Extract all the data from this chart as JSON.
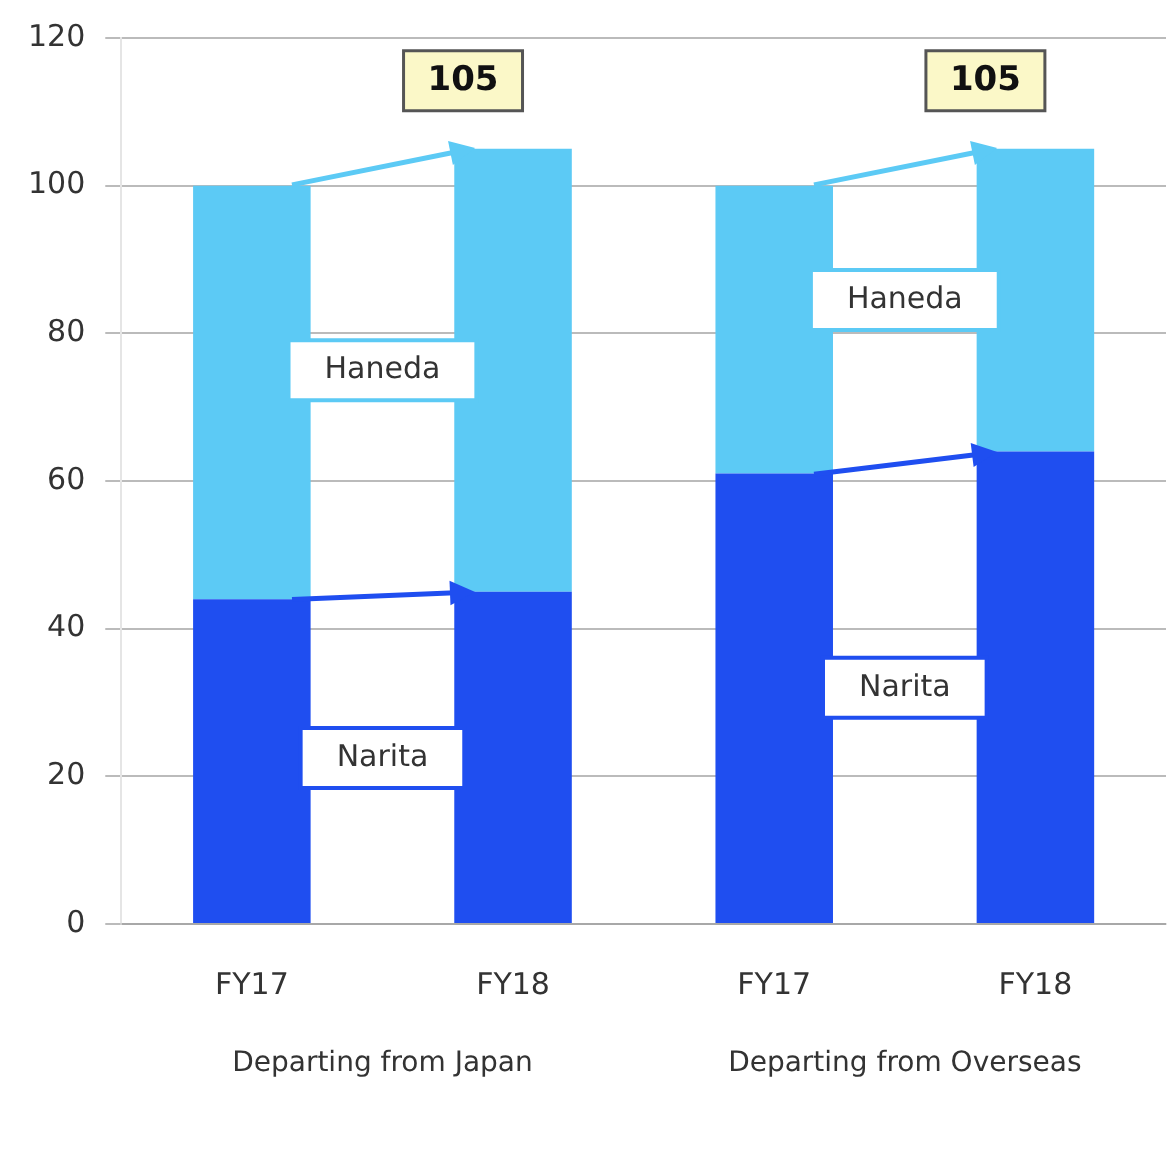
{
  "chart_data": {
    "type": "bar",
    "stacked": true,
    "categories": [
      "FY17",
      "FY18",
      "FY17",
      "FY18"
    ],
    "series": [
      {
        "name": "Narita",
        "color": "#1f4ef0",
        "values": [
          44,
          45,
          61,
          64
        ]
      },
      {
        "name": "Haneda",
        "color": "#5ccaf5",
        "values": [
          56,
          60,
          39,
          41
        ]
      }
    ],
    "totals": [
      null,
      "105",
      null,
      "105"
    ],
    "annotations": [
      "Departing from Japan",
      "Departing from Overseas"
    ],
    "ylim": [
      0,
      120
    ],
    "yticks": [
      0,
      20,
      40,
      60,
      80,
      100,
      120
    ],
    "grid": "y",
    "legend": false
  }
}
